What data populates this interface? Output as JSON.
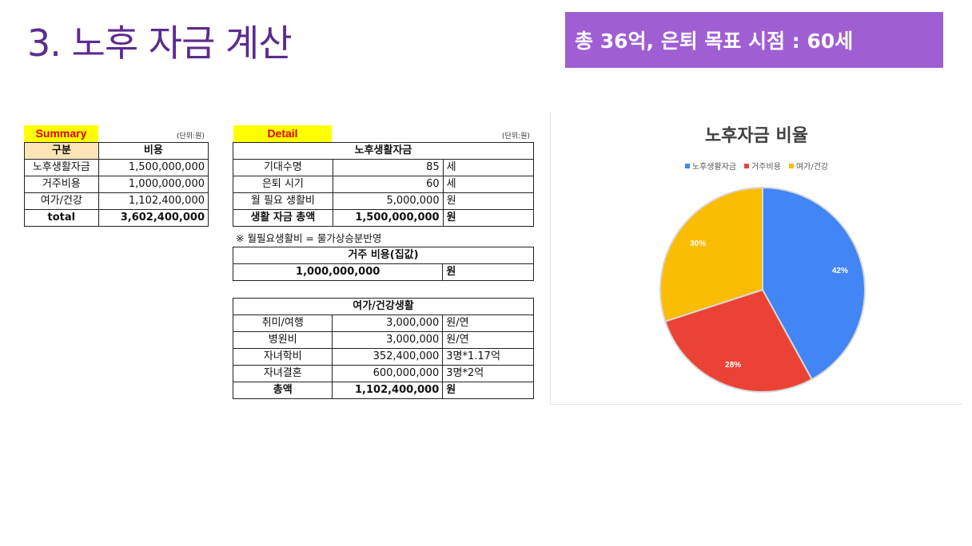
{
  "title": "3. 노후 자금 계산",
  "badge": "총 36억, 은퇴 목표 시점  : 60세",
  "summary": {
    "label": "Summary",
    "unit": "(단위:원)",
    "headers": [
      "구분",
      "비용"
    ],
    "rows": [
      [
        "노후생활자금",
        "1,500,000,000"
      ],
      [
        "거주비용",
        "1,000,000,000"
      ],
      [
        "여가/건강",
        "1,102,400,000"
      ]
    ],
    "total": [
      "total",
      "3,602,400,000"
    ]
  },
  "detail": {
    "label": "Detail",
    "unit": "(단위:원)",
    "living": {
      "header": "노후생활자금",
      "rows": [
        [
          "기대수명",
          "85",
          "세"
        ],
        [
          "은퇴 시기",
          "60",
          "세"
        ],
        [
          "월 필요 생활비",
          "5,000,000",
          "원"
        ]
      ],
      "total": [
        "생활 자금 총액",
        "1,500,000,000",
        "원"
      ]
    },
    "note": "※ 월필요생활비 = 물가상승분반영",
    "housing": {
      "header": "거주 비용(집값)",
      "value": "1,000,000,000",
      "unit": "원"
    },
    "leisure": {
      "header": "여가/건강생활",
      "rows": [
        [
          "취미/여행",
          "3,000,000",
          "원/연"
        ],
        [
          "병원비",
          "3,000,000",
          "원/연"
        ],
        [
          "자녀학비",
          "352,400,000",
          "3명*1.17억"
        ],
        [
          "자녀결혼",
          "600,000,000",
          "3명*2억"
        ]
      ],
      "total": [
        "총액",
        "1,102,400,000",
        "원"
      ]
    }
  },
  "chart_data": {
    "type": "pie",
    "title": "노후자금 비율",
    "categories": [
      "노후생활자금",
      "거주비용",
      "여가/건강"
    ],
    "values": [
      42,
      28,
      30
    ],
    "labels": [
      "42%",
      "28%",
      "30%"
    ],
    "colors": [
      "#4285f4",
      "#ea4335",
      "#fbbc04"
    ],
    "legend_position": "top"
  }
}
